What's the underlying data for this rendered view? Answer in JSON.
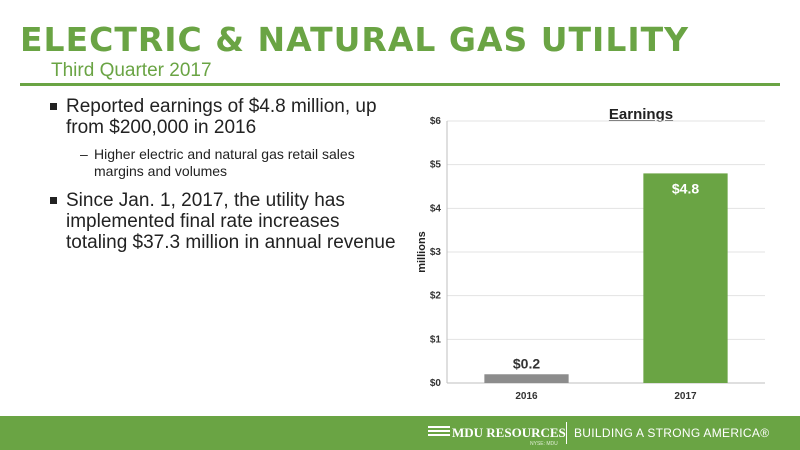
{
  "header": {
    "title": "ELECTRIC & NATURAL GAS UTILITY",
    "subtitle": "Third Quarter 2017"
  },
  "bullets": [
    {
      "text": "Reported earnings of $4.8 million, up from $200,000 in 2016",
      "sub": "Higher electric and natural gas retail sales margins and volumes"
    },
    {
      "text": "Since Jan. 1, 2017, the utility has implemented final rate increases totaling $37.3 million in annual revenue"
    }
  ],
  "chart_data": {
    "type": "bar",
    "title": "Earnings",
    "ylabel": "millions",
    "categories": [
      "2016",
      "2017"
    ],
    "values": [
      0.2,
      4.8
    ],
    "data_labels": [
      "$0.2",
      "$4.8"
    ],
    "bar_colors": [
      "#8c8c8c",
      "#6aa444"
    ],
    "ylim": [
      0,
      6
    ],
    "yticks": [
      0,
      1,
      2,
      3,
      4,
      5,
      6
    ],
    "ytick_labels": [
      "$0",
      "$1",
      "$2",
      "$3",
      "$4",
      "$5",
      "$6"
    ],
    "grid": true
  },
  "footer": {
    "logo": "MDU RESOURCES",
    "logo_tag": "NYSE: MDU",
    "tagline": "BUILDING A STRONG AMERICA®"
  },
  "colors": {
    "accent": "#6aa444",
    "bar_2016": "#8c8c8c",
    "footer_bg": "#6aa444"
  },
  "icons": {
    "bullet": "square-bullet-icon",
    "logo_mark": "mdu-logo-icon"
  }
}
